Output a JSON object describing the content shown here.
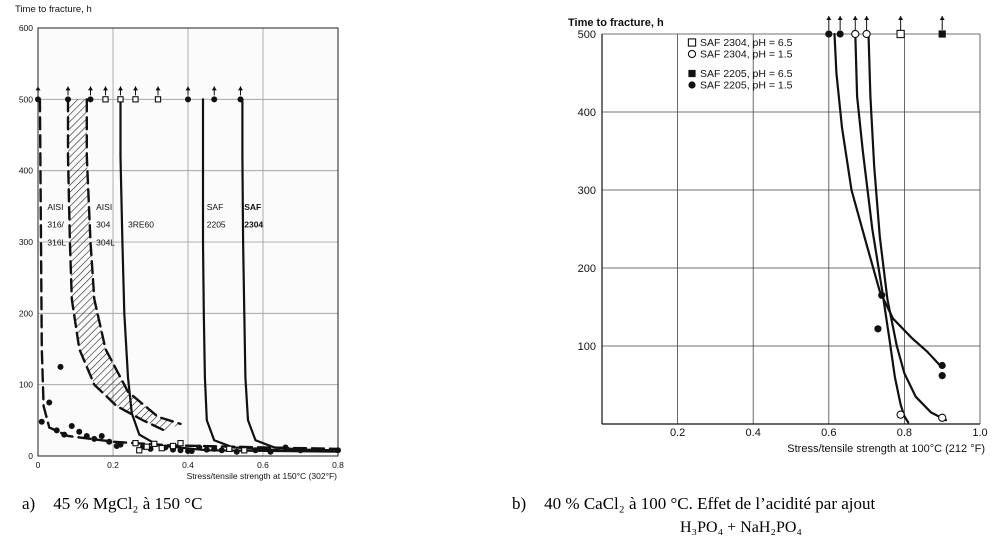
{
  "chart_data": [
    {
      "type": "scatter",
      "ylabel": "Time to fracture, h",
      "xlabel": "Stress/tensile strength at 150°C (302°F)",
      "xlim": [
        0,
        0.8
      ],
      "ylim": [
        0,
        600
      ],
      "x_ticks": [
        "0",
        "0.2",
        "0.4",
        "0.6",
        "0.8"
      ],
      "y_ticks": [
        "0",
        "100",
        "200",
        "300",
        "400",
        "500",
        "600"
      ],
      "grid": true,
      "annotations": [
        {
          "text": "AISI",
          "x": 0.025,
          "y": 345
        },
        {
          "text": "316/",
          "x": 0.025,
          "y": 320
        },
        {
          "text": "316L",
          "x": 0.025,
          "y": 295
        },
        {
          "text": "AISI",
          "x": 0.155,
          "y": 345
        },
        {
          "text": "304",
          "x": 0.155,
          "y": 320
        },
        {
          "text": "304L",
          "x": 0.155,
          "y": 295
        },
        {
          "text": "3RE60",
          "x": 0.24,
          "y": 320
        },
        {
          "text": "SAF",
          "x": 0.45,
          "y": 345
        },
        {
          "text": "2205",
          "x": 0.45,
          "y": 320
        },
        {
          "text": "SAF",
          "x": 0.55,
          "y": 345
        },
        {
          "text": "2304",
          "x": 0.55,
          "y": 320
        }
      ],
      "series": [
        {
          "marker": "filled-circle",
          "points": [
            [
              0,
              500
            ],
            [
              0.08,
              500
            ],
            [
              0.14,
              500
            ],
            [
              0.4,
              500
            ],
            [
              0.47,
              500
            ],
            [
              0.54,
              500
            ],
            [
              0.01,
              48
            ],
            [
              0.03,
              75
            ],
            [
              0.05,
              36
            ],
            [
              0.07,
              30
            ],
            [
              0.09,
              42
            ],
            [
              0.11,
              34
            ],
            [
              0.13,
              28
            ],
            [
              0.15,
              24
            ],
            [
              0.17,
              28
            ],
            [
              0.19,
              20
            ],
            [
              0.21,
              14
            ],
            [
              0.22,
              16
            ],
            [
              0.28,
              13
            ],
            [
              0.3,
              10
            ],
            [
              0.34,
              12
            ],
            [
              0.36,
              9
            ],
            [
              0.38,
              8
            ],
            [
              0.4,
              7
            ],
            [
              0.41,
              7
            ],
            [
              0.43,
              12
            ],
            [
              0.45,
              9
            ],
            [
              0.47,
              10
            ],
            [
              0.49,
              8
            ],
            [
              0.53,
              6
            ],
            [
              0.55,
              10
            ],
            [
              0.58,
              8
            ],
            [
              0.62,
              6
            ],
            [
              0.66,
              12
            ],
            [
              0.7,
              8
            ],
            [
              0.8,
              8
            ],
            [
              0.06,
              125
            ]
          ]
        },
        {
          "marker": "open-square",
          "points": [
            [
              0.18,
              500
            ],
            [
              0.22,
              500
            ],
            [
              0.26,
              500
            ],
            [
              0.32,
              500
            ],
            [
              0.26,
              18
            ],
            [
              0.27,
              8
            ],
            [
              0.29,
              13
            ],
            [
              0.31,
              17
            ],
            [
              0.33,
              11
            ],
            [
              0.36,
              14
            ],
            [
              0.38,
              18
            ],
            [
              0.51,
              10
            ],
            [
              0.55,
              8
            ]
          ]
        }
      ],
      "curves": [
        {
          "style": "dashed",
          "points": [
            [
              0.005,
              500
            ],
            [
              0.006,
              430
            ],
            [
              0.008,
              300
            ],
            [
              0.01,
              150
            ],
            [
              0.015,
              70
            ],
            [
              0.03,
              40
            ],
            [
              0.08,
              28
            ],
            [
              0.2,
              20
            ],
            [
              0.35,
              15
            ],
            [
              0.6,
              12
            ],
            [
              0.8,
              10
            ]
          ]
        },
        {
          "style": "dashed-band-upper",
          "points": [
            [
              0.13,
              500
            ],
            [
              0.13,
              420
            ],
            [
              0.14,
              300
            ],
            [
              0.15,
              220
            ],
            [
              0.18,
              150
            ],
            [
              0.24,
              90
            ],
            [
              0.32,
              55
            ],
            [
              0.38,
              45
            ]
          ]
        },
        {
          "style": "dashed-band-lower",
          "points": [
            [
              0.08,
              500
            ],
            [
              0.08,
              420
            ],
            [
              0.085,
              300
            ],
            [
              0.09,
              220
            ],
            [
              0.11,
              150
            ],
            [
              0.15,
              100
            ],
            [
              0.21,
              70
            ],
            [
              0.28,
              50
            ],
            [
              0.34,
              35
            ]
          ]
        },
        {
          "style": "solid",
          "points": [
            [
              0.22,
              500
            ],
            [
              0.22,
              420
            ],
            [
              0.225,
              300
            ],
            [
              0.23,
              200
            ],
            [
              0.24,
              110
            ],
            [
              0.25,
              60
            ],
            [
              0.27,
              30
            ],
            [
              0.32,
              15
            ],
            [
              0.45,
              8
            ],
            [
              0.8,
              6
            ]
          ]
        },
        {
          "style": "solid",
          "points": [
            [
              0.44,
              500
            ],
            [
              0.44,
              420
            ],
            [
              0.44,
              300
            ],
            [
              0.442,
              200
            ],
            [
              0.445,
              110
            ],
            [
              0.45,
              50
            ],
            [
              0.47,
              22
            ],
            [
              0.52,
              12
            ],
            [
              0.65,
              8
            ],
            [
              0.8,
              7
            ]
          ]
        },
        {
          "style": "solid",
          "points": [
            [
              0.545,
              500
            ],
            [
              0.545,
              420
            ],
            [
              0.547,
              300
            ],
            [
              0.55,
              200
            ],
            [
              0.553,
              110
            ],
            [
              0.56,
              50
            ],
            [
              0.58,
              22
            ],
            [
              0.63,
              12
            ],
            [
              0.7,
              9
            ],
            [
              0.8,
              8
            ]
          ]
        }
      ]
    },
    {
      "type": "scatter",
      "ylabel": "Time to fracture, h",
      "xlabel": "Stress/tensile strength at 100°C (212 °F)",
      "xlim": [
        0,
        1.0
      ],
      "ylim": [
        0,
        500
      ],
      "x_ticks": [
        "0.2",
        "0.4",
        "0.6",
        "0.8",
        "1.0"
      ],
      "y_ticks": [
        "100",
        "200",
        "300",
        "400",
        "500"
      ],
      "grid": true,
      "legend_position": "top-left",
      "series": [
        {
          "name": "SAF 2304, pH = 6.5",
          "marker": "open-square",
          "points": [
            [
              0.79,
              500
            ]
          ]
        },
        {
          "name": "SAF 2304, pH = 1.5",
          "marker": "open-circle",
          "points": [
            [
              0.67,
              500
            ],
            [
              0.7,
              500
            ],
            [
              0.79,
              12
            ],
            [
              0.9,
              8
            ]
          ]
        },
        {
          "name": "SAF 2205, pH = 6.5",
          "marker": "filled-square",
          "points": [
            [
              0.9,
              500
            ]
          ]
        },
        {
          "name": "SAF 2205, pH = 1.5",
          "marker": "filled-circle",
          "points": [
            [
              0.6,
              500
            ],
            [
              0.63,
              500
            ],
            [
              0.74,
              165
            ],
            [
              0.73,
              122
            ],
            [
              0.9,
              75
            ],
            [
              0.9,
              62
            ]
          ]
        }
      ],
      "curves": [
        {
          "style": "solid",
          "points": [
            [
              0.615,
              500
            ],
            [
              0.62,
              450
            ],
            [
              0.635,
              380
            ],
            [
              0.66,
              300
            ],
            [
              0.7,
              230
            ],
            [
              0.735,
              170
            ],
            [
              0.77,
              135
            ],
            [
              0.82,
              110
            ],
            [
              0.86,
              93
            ],
            [
              0.9,
              72
            ]
          ]
        },
        {
          "style": "solid",
          "points": [
            [
              0.67,
              500
            ],
            [
              0.675,
              420
            ],
            [
              0.69,
              350
            ],
            [
              0.715,
              250
            ],
            [
              0.74,
              175
            ],
            [
              0.76,
              110
            ],
            [
              0.775,
              60
            ],
            [
              0.79,
              25
            ],
            [
              0.8,
              10
            ],
            [
              0.81,
              2
            ]
          ]
        },
        {
          "style": "solid",
          "points": [
            [
              0.705,
              500
            ],
            [
              0.71,
              420
            ],
            [
              0.72,
              330
            ],
            [
              0.735,
              240
            ],
            [
              0.755,
              160
            ],
            [
              0.78,
              100
            ],
            [
              0.8,
              65
            ],
            [
              0.83,
              35
            ],
            [
              0.87,
              15
            ],
            [
              0.91,
              5
            ]
          ]
        }
      ]
    }
  ],
  "captions": {
    "a_letter": "a)",
    "a_text": "45 % MgCl₂ à 150 °C",
    "b_letter": "b)",
    "b_text": "40 % CaCl₂ à 100 °C. Effet de l’acidité par ajout",
    "b_text2": "H₃PO₄ + NaH₂PO₄"
  }
}
